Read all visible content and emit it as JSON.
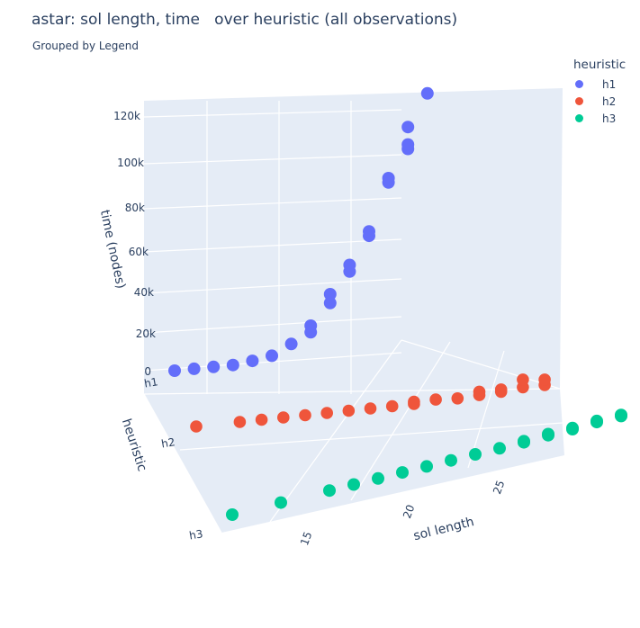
{
  "title": "astar: sol length, time   over heuristic (all observations)",
  "subtitle": "Grouped by Legend",
  "legend": {
    "title": "heuristic",
    "items": [
      {
        "label": "h1",
        "color": "#636efa"
      },
      {
        "label": "h2",
        "color": "#ef553b"
      },
      {
        "label": "h3",
        "color": "#00cc96"
      }
    ]
  },
  "chart_data": {
    "type": "scatter3d",
    "x_axis": {
      "title": "sol length",
      "ticks": [
        "15",
        "20",
        "25"
      ],
      "range": [
        12,
        28
      ]
    },
    "y_axis": {
      "title": "heuristic",
      "ticks": [
        "h1",
        "h2",
        "h3"
      ]
    },
    "z_axis": {
      "title": "time (nodes)",
      "ticks": [
        "0",
        "20k",
        "40k",
        "60k",
        "80k",
        "100k",
        "120k"
      ],
      "range": [
        0,
        125000
      ]
    },
    "grid": true,
    "legend_position": "top-right",
    "series": [
      {
        "name": "h1",
        "color": "#636efa",
        "points": [
          [
            12,
            0
          ],
          [
            13,
            500
          ],
          [
            14,
            1000
          ],
          [
            15,
            1500
          ],
          [
            16,
            3000
          ],
          [
            17,
            5000
          ],
          [
            18,
            10000
          ],
          [
            19,
            15000
          ],
          [
            19,
            18000
          ],
          [
            20,
            28000
          ],
          [
            20,
            32000
          ],
          [
            21,
            42000
          ],
          [
            21,
            45000
          ],
          [
            22,
            58000
          ],
          [
            22,
            60000
          ],
          [
            23,
            82000
          ],
          [
            23,
            84000
          ],
          [
            24,
            97000
          ],
          [
            24,
            99000
          ],
          [
            24,
            107000
          ],
          [
            25,
            122000
          ]
        ]
      },
      {
        "name": "h2",
        "color": "#ef553b",
        "points": [
          [
            12,
            0
          ],
          [
            14,
            0
          ],
          [
            15,
            0
          ],
          [
            16,
            0
          ],
          [
            17,
            0
          ],
          [
            18,
            0
          ],
          [
            19,
            0
          ],
          [
            20,
            0
          ],
          [
            21,
            0
          ],
          [
            22,
            0
          ],
          [
            22,
            1000
          ],
          [
            23,
            1000
          ],
          [
            24,
            500
          ],
          [
            25,
            1000
          ],
          [
            25,
            2500
          ],
          [
            26,
            1500
          ],
          [
            26,
            2500
          ],
          [
            27,
            2500
          ],
          [
            27,
            6000
          ],
          [
            28,
            2500
          ],
          [
            28,
            5000
          ]
        ]
      },
      {
        "name": "h3",
        "color": "#00cc96",
        "points": [
          [
            12,
            0
          ],
          [
            14,
            0
          ],
          [
            16,
            0
          ],
          [
            17,
            0
          ],
          [
            18,
            0
          ],
          [
            19,
            0
          ],
          [
            20,
            0
          ],
          [
            21,
            0
          ],
          [
            22,
            0
          ],
          [
            23,
            0
          ],
          [
            24,
            0
          ],
          [
            24,
            500
          ],
          [
            25,
            500
          ],
          [
            25,
            1000
          ],
          [
            26,
            500
          ],
          [
            26,
            1000
          ],
          [
            27,
            1000
          ],
          [
            27,
            1500
          ],
          [
            28,
            1000
          ],
          [
            28,
            1500
          ]
        ]
      }
    ]
  }
}
